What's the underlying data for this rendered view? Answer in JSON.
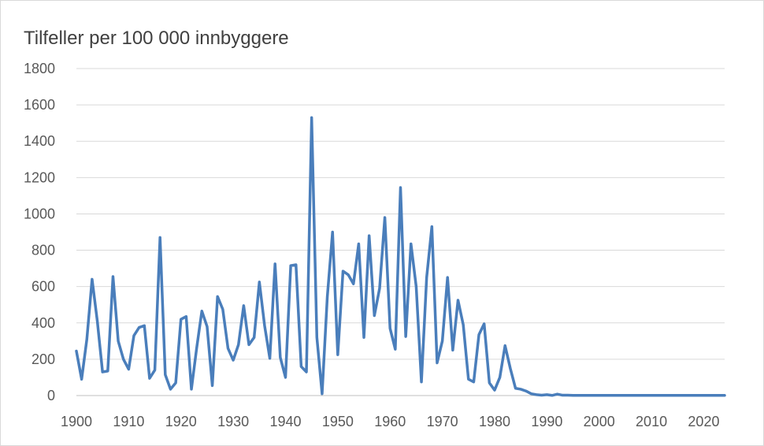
{
  "chart_data": {
    "type": "line",
    "title": "",
    "ylabel": "Tilfeller per 100 000 innbyggere",
    "xlabel": "",
    "xlim": [
      1900,
      2024
    ],
    "ylim": [
      0,
      1800
    ],
    "y_ticks": [
      0,
      200,
      400,
      600,
      800,
      1000,
      1200,
      1400,
      1600,
      1800
    ],
    "x_ticks": [
      1900,
      1910,
      1920,
      1930,
      1940,
      1950,
      1960,
      1970,
      1980,
      1990,
      2000,
      2010,
      2020
    ],
    "grid": "horizontal",
    "legend": "none",
    "colors": {
      "line": "#4a7ebb",
      "grid": "#d9d9d9",
      "axis": "#bfbfbf",
      "text": "#595959"
    },
    "series": [
      {
        "x": [
          1900,
          1901,
          1902,
          1903,
          1904,
          1905,
          1906,
          1907,
          1908,
          1909,
          1910,
          1911,
          1912,
          1913,
          1914,
          1915,
          1916,
          1917,
          1918,
          1919,
          1920,
          1921,
          1922,
          1923,
          1924,
          1925,
          1926,
          1927,
          1928,
          1929,
          1930,
          1931,
          1932,
          1933,
          1934,
          1935,
          1936,
          1937,
          1938,
          1939,
          1940,
          1941,
          1942,
          1943,
          1944,
          1945,
          1946,
          1947,
          1948,
          1949,
          1950,
          1951,
          1952,
          1953,
          1954,
          1955,
          1956,
          1957,
          1958,
          1959,
          1960,
          1961,
          1962,
          1963,
          1964,
          1965,
          1966,
          1967,
          1968,
          1969,
          1970,
          1971,
          1972,
          1973,
          1974,
          1975,
          1976,
          1977,
          1978,
          1979,
          1980,
          1981,
          1982,
          1983,
          1984,
          1985,
          1986,
          1987,
          1988,
          1989,
          1990,
          1991,
          1992,
          1993,
          1994,
          1995,
          1996,
          1997,
          1998,
          1999,
          2000,
          2001,
          2002,
          2003,
          2004,
          2005,
          2006,
          2007,
          2008,
          2009,
          2010,
          2011,
          2012,
          2013,
          2014,
          2015,
          2016,
          2017,
          2018,
          2019,
          2020,
          2021,
          2022,
          2023,
          2024
        ],
        "values": [
          245,
          90,
          310,
          640,
          410,
          130,
          135,
          655,
          300,
          200,
          145,
          330,
          375,
          385,
          95,
          140,
          870,
          115,
          35,
          70,
          420,
          435,
          35,
          260,
          465,
          380,
          55,
          545,
          475,
          260,
          195,
          280,
          495,
          280,
          320,
          625,
          385,
          205,
          725,
          210,
          100,
          715,
          720,
          160,
          130,
          1530,
          320,
          10,
          545,
          900,
          225,
          685,
          665,
          615,
          835,
          320,
          880,
          440,
          590,
          980,
          370,
          255,
          1145,
          325,
          835,
          600,
          75,
          650,
          930,
          180,
          300,
          650,
          250,
          525,
          390,
          90,
          75,
          335,
          395,
          70,
          30,
          100,
          275,
          150,
          40,
          35,
          25,
          10,
          5,
          2,
          5,
          1,
          8,
          2,
          2,
          1,
          1,
          1,
          1,
          1,
          1,
          1,
          1,
          1,
          1,
          1,
          1,
          1,
          1,
          1,
          1,
          1,
          1,
          1,
          1,
          1,
          1,
          1,
          1,
          1,
          1,
          1,
          1,
          1,
          1
        ]
      }
    ]
  }
}
